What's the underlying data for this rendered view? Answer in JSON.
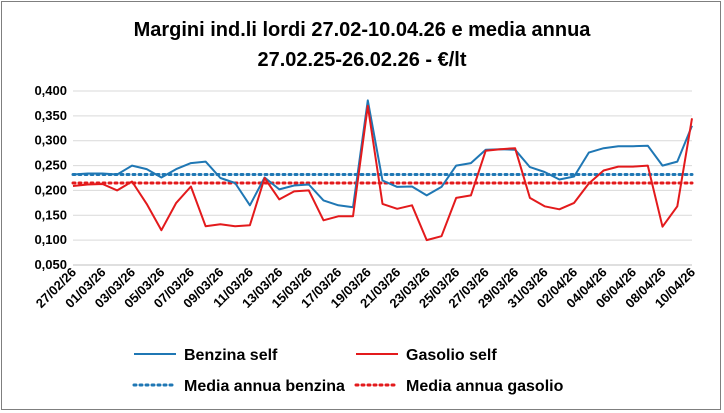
{
  "chart_data": {
    "type": "line",
    "title": "Margini ind.li lordi 27.02-10.04.26 e media annua",
    "subtitle": "27.02.25-26.02.26 - €/lt",
    "xlabel": "",
    "ylabel": "",
    "ylim": [
      0.05,
      0.4
    ],
    "yticks": [
      "0,050",
      "0,100",
      "0,150",
      "0,200",
      "0,250",
      "0,300",
      "0,350",
      "0,400"
    ],
    "ytick_values": [
      0.05,
      0.1,
      0.15,
      0.2,
      0.25,
      0.3,
      0.35,
      0.4
    ],
    "grid": "horizontal",
    "legend_position": "bottom",
    "x": [
      "27/02/26",
      "28/02/26",
      "01/03/26",
      "02/03/26",
      "03/03/26",
      "04/03/26",
      "05/03/26",
      "06/03/26",
      "07/03/26",
      "08/03/26",
      "09/03/26",
      "10/03/26",
      "11/03/26",
      "12/03/26",
      "13/03/26",
      "14/03/26",
      "15/03/26",
      "16/03/26",
      "17/03/26",
      "18/03/26",
      "19/03/26",
      "20/03/26",
      "21/03/26",
      "22/03/26",
      "23/03/26",
      "24/03/26",
      "25/03/26",
      "26/03/26",
      "27/03/26",
      "28/03/26",
      "29/03/26",
      "30/03/26",
      "31/03/26",
      "01/04/26",
      "02/04/26",
      "03/04/26",
      "04/04/26",
      "05/04/26",
      "06/04/26",
      "07/04/26",
      "08/04/26",
      "09/04/26",
      "10/04/26"
    ],
    "x_tick_labels": [
      "27/02/26",
      "01/03/26",
      "03/03/26",
      "05/03/26",
      "07/03/26",
      "09/03/26",
      "11/03/26",
      "13/03/26",
      "15/03/26",
      "17/03/26",
      "19/03/26",
      "21/03/26",
      "23/03/26",
      "25/03/26",
      "27/03/26",
      "29/03/26",
      "31/03/26",
      "02/04/26",
      "04/04/26",
      "06/04/26",
      "08/04/26",
      "10/04/26"
    ],
    "series": [
      {
        "name": "Benzina self",
        "style": "solid",
        "color": "#1f77b4",
        "values": [
          0.232,
          0.234,
          0.234,
          0.232,
          0.25,
          0.243,
          0.226,
          0.243,
          0.255,
          0.258,
          0.225,
          0.215,
          0.17,
          0.226,
          0.202,
          0.21,
          0.212,
          0.18,
          0.17,
          0.166,
          0.381,
          0.22,
          0.207,
          0.208,
          0.19,
          0.207,
          0.25,
          0.255,
          0.282,
          0.283,
          0.282,
          0.247,
          0.237,
          0.222,
          0.228,
          0.276,
          0.285,
          0.289,
          0.289,
          0.29,
          0.25,
          0.258,
          0.33
        ]
      },
      {
        "name": "Gasolio self",
        "style": "solid",
        "color": "#e31a1c",
        "values": [
          0.209,
          0.212,
          0.213,
          0.2,
          0.218,
          0.173,
          0.12,
          0.175,
          0.208,
          0.128,
          0.132,
          0.128,
          0.13,
          0.225,
          0.182,
          0.198,
          0.2,
          0.14,
          0.148,
          0.148,
          0.37,
          0.173,
          0.163,
          0.17,
          0.1,
          0.108,
          0.185,
          0.19,
          0.28,
          0.283,
          0.285,
          0.185,
          0.168,
          0.162,
          0.175,
          0.214,
          0.24,
          0.248,
          0.248,
          0.25,
          0.127,
          0.168,
          0.345
        ]
      },
      {
        "name": "Media annua benzina",
        "style": "dotted",
        "color": "#1f77b4",
        "values": [
          0.232,
          0.232,
          0.232,
          0.232,
          0.232,
          0.232,
          0.232,
          0.232,
          0.232,
          0.232,
          0.232,
          0.232,
          0.232,
          0.232,
          0.232,
          0.232,
          0.232,
          0.232,
          0.232,
          0.232,
          0.232,
          0.232,
          0.232,
          0.232,
          0.232,
          0.232,
          0.232,
          0.232,
          0.232,
          0.232,
          0.232,
          0.232,
          0.232,
          0.232,
          0.232,
          0.232,
          0.232,
          0.232,
          0.232,
          0.232,
          0.232,
          0.232,
          0.232
        ]
      },
      {
        "name": "Media annua gasolio",
        "style": "dotted",
        "color": "#e31a1c",
        "values": [
          0.215,
          0.215,
          0.215,
          0.215,
          0.215,
          0.215,
          0.215,
          0.215,
          0.215,
          0.215,
          0.215,
          0.215,
          0.215,
          0.215,
          0.215,
          0.215,
          0.215,
          0.215,
          0.215,
          0.215,
          0.215,
          0.215,
          0.215,
          0.215,
          0.215,
          0.215,
          0.215,
          0.215,
          0.215,
          0.215,
          0.215,
          0.215,
          0.215,
          0.215,
          0.215,
          0.215,
          0.215,
          0.215,
          0.215,
          0.215,
          0.215,
          0.215,
          0.215
        ]
      }
    ]
  }
}
